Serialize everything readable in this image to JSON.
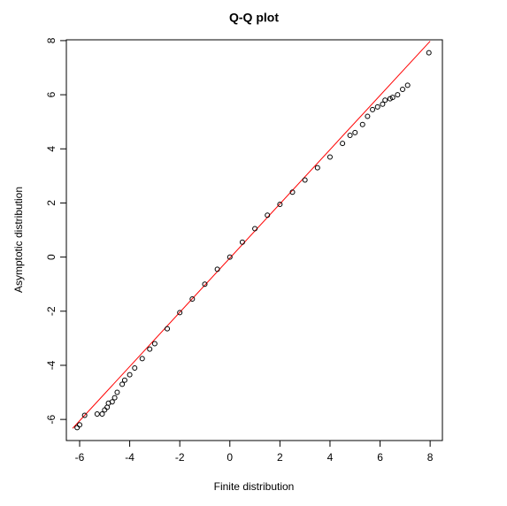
{
  "chart_data": {
    "type": "scatter",
    "title": "Q-Q plot",
    "x_label": "Finite distribution",
    "y_label": "Asymptotic distribution",
    "x": [
      -6.1,
      -6.0,
      -5.8,
      -5.3,
      -5.1,
      -5.0,
      -4.9,
      -4.85,
      -4.7,
      -4.6,
      -4.5,
      -4.3,
      -4.2,
      -4.0,
      -3.8,
      -3.5,
      -3.2,
      -3.0,
      -2.5,
      -2.0,
      -1.5,
      -1.0,
      -0.5,
      0,
      0.5,
      1,
      1.5,
      2,
      2.5,
      3,
      3.5,
      4,
      4.5,
      4.8,
      5.0,
      5.3,
      5.5,
      5.7,
      5.9,
      6.1,
      6.2,
      6.4,
      6.5,
      6.7,
      6.9,
      7.1,
      7.95
    ],
    "values": [
      -6.3,
      -6.2,
      -5.85,
      -5.8,
      -5.8,
      -5.65,
      -5.55,
      -5.4,
      -5.35,
      -5.2,
      -5.0,
      -4.7,
      -4.55,
      -4.35,
      -4.1,
      -3.75,
      -3.4,
      -3.2,
      -2.65,
      -2.05,
      -1.55,
      -1.0,
      -0.45,
      0,
      0.55,
      1.05,
      1.55,
      1.95,
      2.4,
      2.85,
      3.3,
      3.7,
      4.2,
      4.5,
      4.6,
      4.9,
      5.2,
      5.45,
      5.55,
      5.65,
      5.8,
      5.85,
      5.9,
      6.0,
      6.2,
      6.35,
      7.55
    ],
    "color": "#000000",
    "reference_line": {
      "x": [
        -6.28,
        8.0
      ],
      "y": [
        -6.33,
        7.98
      ],
      "color": "#ff0000"
    },
    "xlim": [
      -6.53,
      8.49
    ],
    "ylim": [
      -6.78,
      8.03
    ],
    "xticks": [
      -6,
      -4,
      -2,
      0,
      2,
      4,
      6,
      8
    ],
    "yticks": [
      -6,
      -4,
      -2,
      0,
      2,
      4,
      6,
      8
    ]
  }
}
